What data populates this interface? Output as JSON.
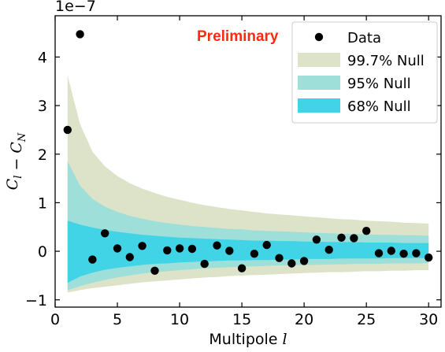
{
  "chart_data": {
    "type": "scatter",
    "xlabel": "Multipole l",
    "ylabel": "C_l − C_N",
    "y_offset_label": "1e−7",
    "annotation": "Preliminary",
    "xlim": [
      0,
      31
    ],
    "ylim": [
      -1.15,
      4.85
    ],
    "xticks": [
      0,
      5,
      10,
      15,
      20,
      25,
      30
    ],
    "yticks": [
      -1,
      0,
      1,
      2,
      3,
      4
    ],
    "legend_position": "top-right",
    "colors": {
      "data": "#000000",
      "band_997": "#dde3c8",
      "band_95": "#9edfd9",
      "band_68": "#40d4e6",
      "annotation": "#ff2a10"
    },
    "series": [
      {
        "name": "Data",
        "x": [
          1,
          2,
          3,
          4,
          5,
          6,
          7,
          8,
          9,
          10,
          11,
          12,
          13,
          14,
          15,
          16,
          17,
          18,
          19,
          20,
          21,
          22,
          23,
          24,
          25,
          26,
          27,
          28,
          29,
          30
        ],
        "y": [
          2.5,
          4.47,
          -0.17,
          0.37,
          0.06,
          -0.12,
          0.11,
          -0.4,
          0.02,
          0.06,
          0.05,
          -0.26,
          0.12,
          0.01,
          -0.35,
          -0.05,
          0.13,
          -0.14,
          -0.25,
          -0.2,
          0.24,
          0.03,
          0.28,
          0.27,
          0.42,
          -0.04,
          0.01,
          -0.05,
          -0.04,
          -0.13
        ]
      }
    ],
    "bands": [
      {
        "name": "99.7% Null",
        "x": [
          1,
          2,
          3,
          4,
          5,
          6,
          7,
          8,
          9,
          10,
          11,
          12,
          13,
          14,
          15,
          16,
          17,
          18,
          19,
          20,
          21,
          22,
          23,
          24,
          25,
          26,
          27,
          28,
          29,
          30
        ],
        "upper": [
          3.62,
          2.62,
          2.05,
          1.75,
          1.55,
          1.4,
          1.29,
          1.2,
          1.12,
          1.06,
          1.0,
          0.95,
          0.91,
          0.87,
          0.84,
          0.81,
          0.78,
          0.76,
          0.74,
          0.72,
          0.7,
          0.68,
          0.66,
          0.65,
          0.63,
          0.62,
          0.61,
          0.59,
          0.58,
          0.57
        ],
        "lower": [
          -0.85,
          -0.8,
          -0.76,
          -0.73,
          -0.7,
          -0.67,
          -0.64,
          -0.62,
          -0.6,
          -0.58,
          -0.56,
          -0.54,
          -0.53,
          -0.51,
          -0.5,
          -0.49,
          -0.48,
          -0.47,
          -0.46,
          -0.45,
          -0.44,
          -0.43,
          -0.43,
          -0.42,
          -0.41,
          -0.41,
          -0.4,
          -0.4,
          -0.39,
          -0.39
        ]
      },
      {
        "name": "95% Null",
        "x": [
          1,
          2,
          3,
          4,
          5,
          6,
          7,
          8,
          9,
          10,
          11,
          12,
          13,
          14,
          15,
          16,
          17,
          18,
          19,
          20,
          21,
          22,
          23,
          24,
          25,
          26,
          27,
          28,
          29,
          30
        ],
        "upper": [
          1.85,
          1.35,
          1.08,
          0.92,
          0.81,
          0.73,
          0.67,
          0.62,
          0.58,
          0.55,
          0.52,
          0.5,
          0.48,
          0.46,
          0.45,
          0.43,
          0.42,
          0.41,
          0.4,
          0.39,
          0.38,
          0.37,
          0.36,
          0.36,
          0.35,
          0.34,
          0.34,
          0.33,
          0.33,
          0.32
        ],
        "lower": [
          -0.8,
          -0.72,
          -0.65,
          -0.59,
          -0.54,
          -0.5,
          -0.46,
          -0.43,
          -0.41,
          -0.39,
          -0.37,
          -0.35,
          -0.34,
          -0.33,
          -0.32,
          -0.31,
          -0.3,
          -0.29,
          -0.29,
          -0.28,
          -0.28,
          -0.27,
          -0.27,
          -0.26,
          -0.26,
          -0.26,
          -0.25,
          -0.25,
          -0.25,
          -0.24
        ]
      },
      {
        "name": "68% Null",
        "x": [
          1,
          2,
          3,
          4,
          5,
          6,
          7,
          8,
          9,
          10,
          11,
          12,
          13,
          14,
          15,
          16,
          17,
          18,
          19,
          20,
          21,
          22,
          23,
          24,
          25,
          26,
          27,
          28,
          29,
          30
        ],
        "upper": [
          0.63,
          0.55,
          0.49,
          0.44,
          0.4,
          0.37,
          0.34,
          0.32,
          0.3,
          0.28,
          0.27,
          0.26,
          0.25,
          0.24,
          0.23,
          0.22,
          0.22,
          0.21,
          0.21,
          0.2,
          0.2,
          0.19,
          0.19,
          0.19,
          0.18,
          0.18,
          0.18,
          0.17,
          0.17,
          0.17
        ],
        "lower": [
          -0.65,
          -0.52,
          -0.44,
          -0.38,
          -0.34,
          -0.31,
          -0.28,
          -0.26,
          -0.25,
          -0.23,
          -0.22,
          -0.21,
          -0.2,
          -0.19,
          -0.19,
          -0.18,
          -0.18,
          -0.17,
          -0.17,
          -0.16,
          -0.16,
          -0.16,
          -0.15,
          -0.15,
          -0.15,
          -0.15,
          -0.14,
          -0.14,
          -0.14,
          -0.14
        ]
      }
    ]
  }
}
